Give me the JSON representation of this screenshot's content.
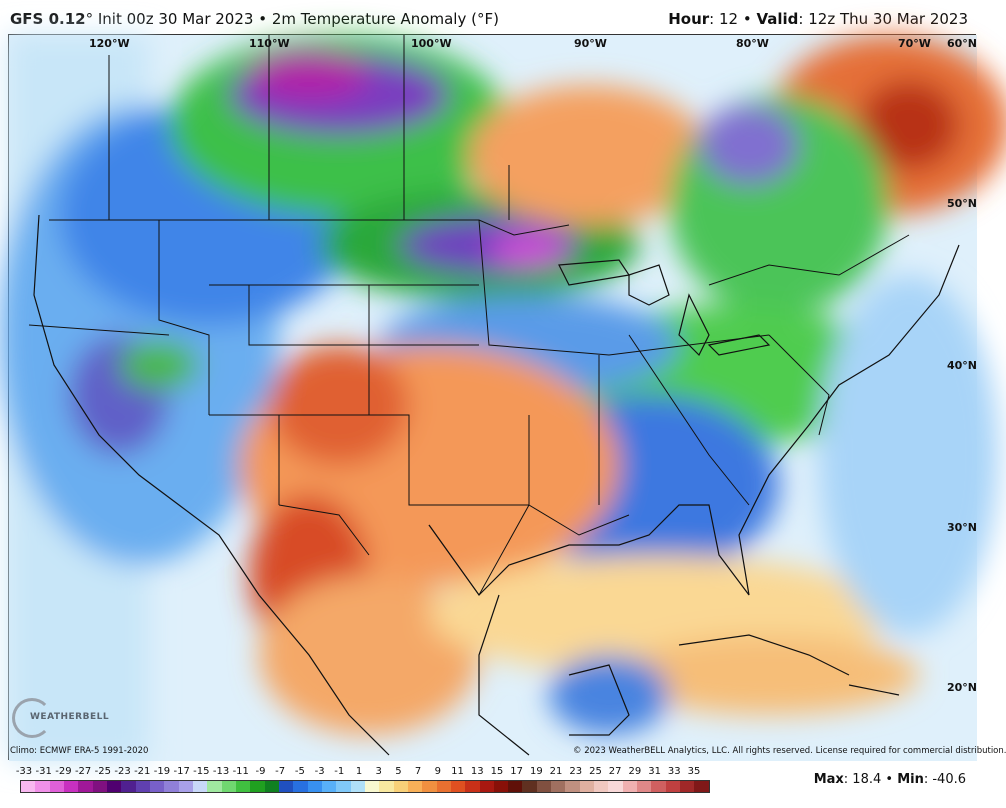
{
  "header": {
    "model": "GFS 0.12",
    "model_suffix": "°",
    "init_text": " Init 00z 30 Mar 2023 • 2m Temperature Anomaly (°F)",
    "hour_label": "Hour",
    "hour_value": ": 12 • ",
    "valid_label": "Valid",
    "valid_value": ": 12z Thu 30 Mar 2023"
  },
  "longitude_labels": [
    "120°W",
    "110°W",
    "100°W",
    "90°W",
    "80°W",
    "70°W"
  ],
  "latitude_labels": [
    "60°N",
    "50°N",
    "40°N",
    "30°N",
    "20°N"
  ],
  "footer": {
    "climo": "Climo: ECMWF ERA-5 1991-2020",
    "copyright": "© 2023 WeatherBELL Analytics, LLC. All rights reserved. License required for commercial distribution."
  },
  "logo_text": "WEATHERBELL",
  "scale": {
    "labels": [
      "-33",
      "-31",
      "-29",
      "-27",
      "-25",
      "-23",
      "-21",
      "-19",
      "-17",
      "-15",
      "-13",
      "-11",
      "-9",
      "-7",
      "-5",
      "-3",
      "-1",
      "1",
      "3",
      "5",
      "7",
      "9",
      "11",
      "13",
      "15",
      "17",
      "19",
      "21",
      "23",
      "25",
      "27",
      "29",
      "31",
      "33",
      "35"
    ],
    "colors": [
      "#f8b8f0",
      "#f090e8",
      "#e060d8",
      "#c830c0",
      "#a01898",
      "#801080",
      "#500070",
      "#502090",
      "#6040b0",
      "#7860c8",
      "#9080d8",
      "#a8a0e8",
      "#c8d8f8",
      "#a0e8a0",
      "#70d870",
      "#40c040",
      "#20a020",
      "#108020",
      "#2050c0",
      "#2870e0",
      "#3890f0",
      "#58b0f8",
      "#80c8f8",
      "#b0e0f8",
      "#f8f8d0",
      "#f8e8a0",
      "#f8d078",
      "#f8b058",
      "#f09040",
      "#e87030",
      "#e05020",
      "#c83018",
      "#a81810",
      "#881008",
      "#601008",
      "#603020",
      "#805040",
      "#a07060",
      "#c09080",
      "#e0b0a0",
      "#f0c8c0",
      "#f8d8d8",
      "#f0b0b0",
      "#e08888",
      "#d06060",
      "#c04040",
      "#a02828",
      "#801818"
    ]
  },
  "maxmin": {
    "max_label": "Max",
    "max_value": ": 18.4 • ",
    "min_label": "Min",
    "min_value": ": -40.6"
  }
}
